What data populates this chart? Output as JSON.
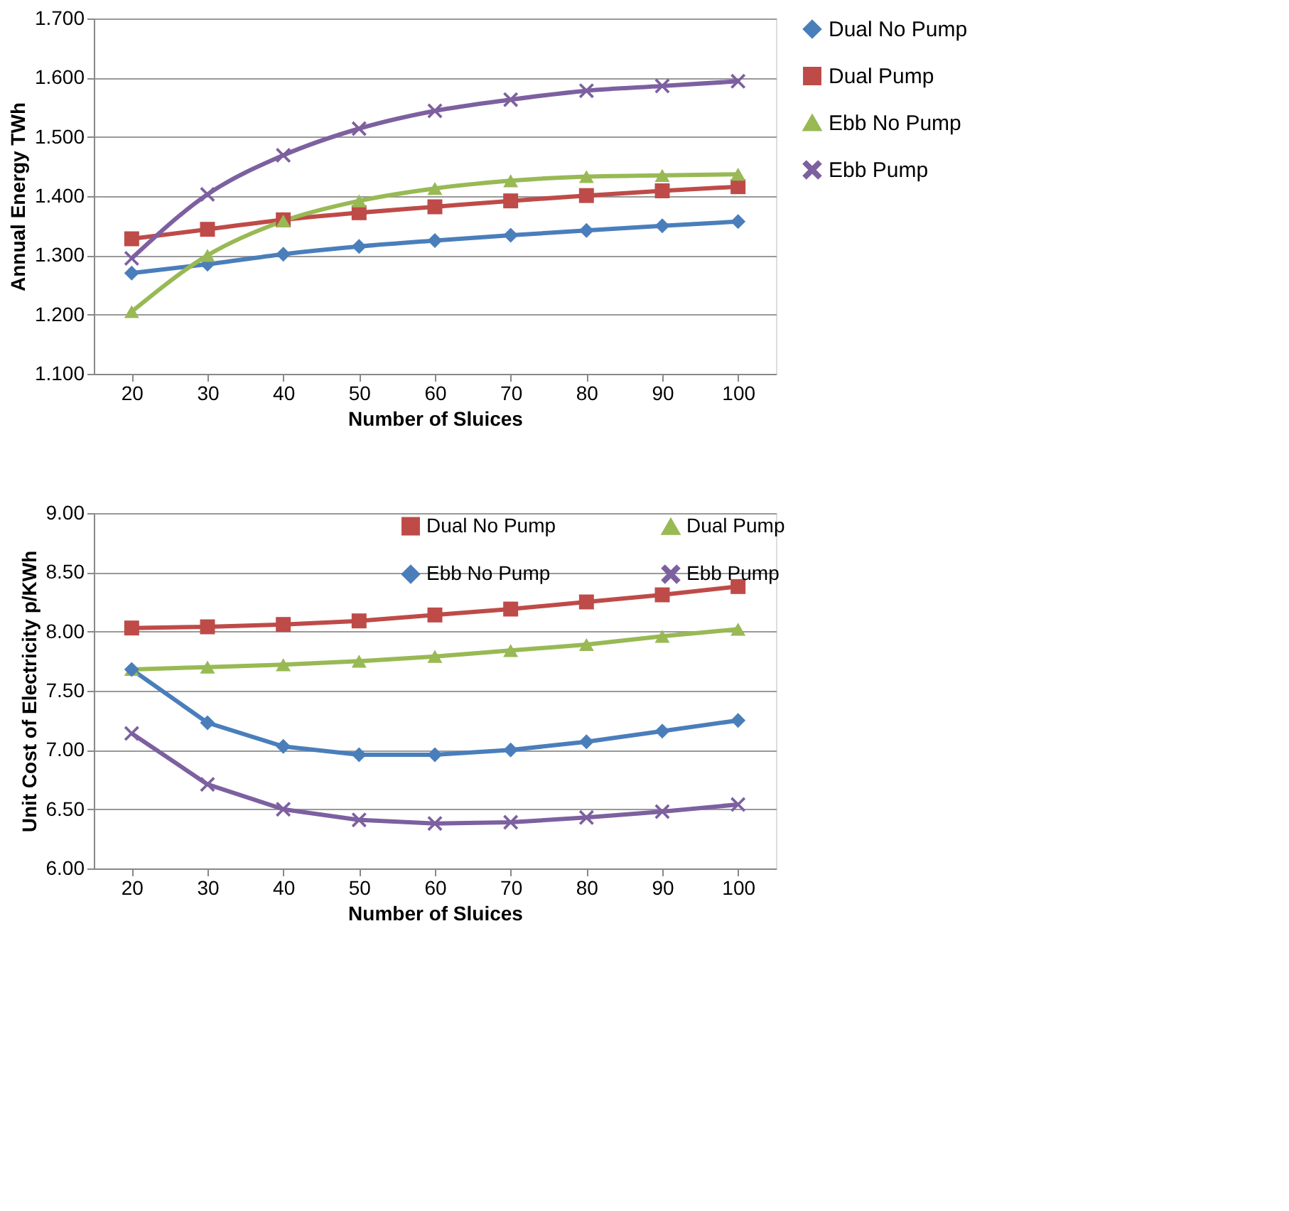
{
  "chart_data": [
    {
      "type": "line",
      "xlabel": "Number of Sluices",
      "ylabel": "Annual Energy TWh",
      "categories": [
        "20",
        "30",
        "40",
        "50",
        "60",
        "70",
        "80",
        "90",
        "100"
      ],
      "ylim": [
        1.1,
        1.7
      ],
      "yticks": [
        {
          "value": 1.1,
          "label": "1.100"
        },
        {
          "value": 1.2,
          "label": "1.200"
        },
        {
          "value": 1.3,
          "label": "1.300"
        },
        {
          "value": 1.4,
          "label": "1.400"
        },
        {
          "value": 1.5,
          "label": "1.500"
        },
        {
          "value": 1.6,
          "label": "1.600"
        },
        {
          "value": 1.7,
          "label": "1.700"
        }
      ],
      "grid": "y",
      "legend": "right",
      "series": [
        {
          "name": "Dual No Pump",
          "color": "#4a7ebb",
          "marker": "diamond",
          "values": [
            1.27,
            1.285,
            1.302,
            1.315,
            1.325,
            1.334,
            1.342,
            1.35,
            1.357
          ]
        },
        {
          "name": "Dual Pump",
          "color": "#be4b48",
          "marker": "square",
          "values": [
            1.328,
            1.344,
            1.36,
            1.372,
            1.382,
            1.392,
            1.401,
            1.409,
            1.416
          ]
        },
        {
          "name": "Ebb No Pump",
          "color": "#98b954",
          "marker": "triangle",
          "values": [
            1.205,
            1.3,
            1.358,
            1.392,
            1.413,
            1.426,
            1.433,
            1.435,
            1.437
          ]
        },
        {
          "name": "Ebb Pump",
          "color": "#7d60a0",
          "marker": "cross",
          "values": [
            1.295,
            1.403,
            1.469,
            1.514,
            1.544,
            1.563,
            1.578,
            1.586,
            1.594
          ]
        }
      ]
    },
    {
      "type": "line",
      "xlabel": "Number of Sluices",
      "ylabel": "Unit Cost of Electricity p/KWh",
      "categories": [
        "20",
        "30",
        "40",
        "50",
        "60",
        "70",
        "80",
        "90",
        "100"
      ],
      "ylim": [
        6.0,
        9.0
      ],
      "yticks": [
        {
          "value": 6.0,
          "label": "6.00"
        },
        {
          "value": 6.5,
          "label": "6.50"
        },
        {
          "value": 7.0,
          "label": "7.00"
        },
        {
          "value": 7.5,
          "label": "7.50"
        },
        {
          "value": 8.0,
          "label": "8.00"
        },
        {
          "value": 8.5,
          "label": "8.50"
        },
        {
          "value": 9.0,
          "label": "9.00"
        }
      ],
      "grid": "y",
      "legend": "top",
      "series": [
        {
          "name": "Dual No Pump",
          "color": "#be4b48",
          "marker": "square",
          "values": [
            8.03,
            8.04,
            8.06,
            8.09,
            8.14,
            8.19,
            8.25,
            8.31,
            8.38
          ]
        },
        {
          "name": "Dual Pump",
          "color": "#98b954",
          "marker": "triangle",
          "values": [
            7.68,
            7.7,
            7.72,
            7.75,
            7.79,
            7.84,
            7.89,
            7.96,
            8.02
          ]
        },
        {
          "name": "Ebb No Pump",
          "color": "#4a7ebb",
          "marker": "diamond",
          "values": [
            7.68,
            7.23,
            7.03,
            6.96,
            6.96,
            7.0,
            7.07,
            7.16,
            7.25
          ]
        },
        {
          "name": "Ebb Pump",
          "color": "#7d60a0",
          "marker": "cross",
          "values": [
            7.14,
            6.71,
            6.5,
            6.41,
            6.38,
            6.39,
            6.43,
            6.48,
            6.54
          ]
        }
      ]
    }
  ]
}
